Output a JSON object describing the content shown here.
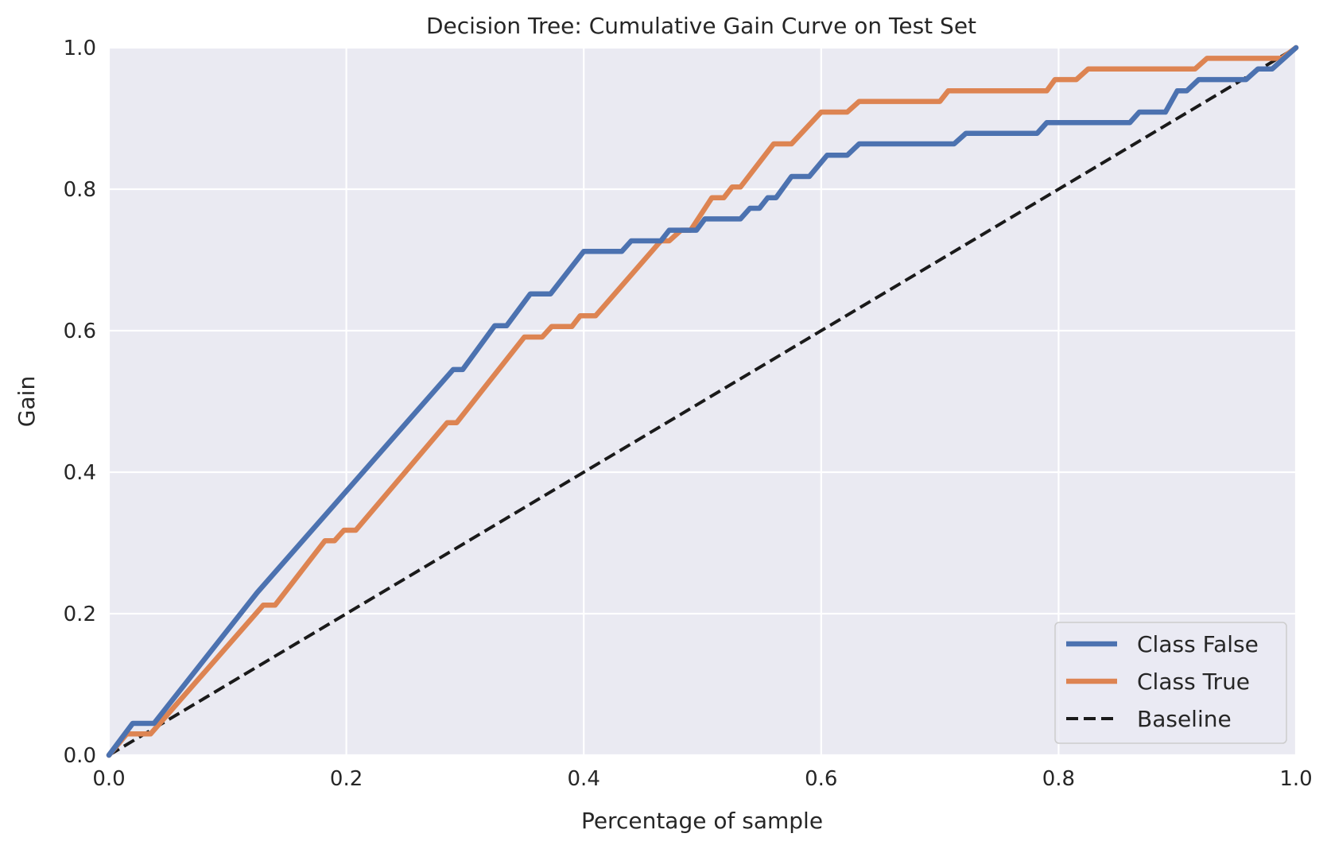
{
  "chart_data": {
    "type": "line",
    "title": "Decision Tree: Cumulative Gain Curve on Test Set",
    "xlabel": "Percentage of sample",
    "ylabel": "Gain",
    "xlim": [
      0.0,
      1.0
    ],
    "ylim": [
      0.0,
      1.0
    ],
    "xticks": [
      "0.0",
      "0.2",
      "0.4",
      "0.6",
      "0.8",
      "1.0"
    ],
    "yticks": [
      "0.0",
      "0.2",
      "0.4",
      "0.6",
      "0.8",
      "1.0"
    ],
    "grid": true,
    "background": "#eaeaf2",
    "legend_position": "lower-right",
    "series": [
      {
        "name": "Class False",
        "color": "#4c72b0",
        "style": "solid",
        "points": [
          [
            0.0,
            0.0
          ],
          [
            0.02,
            0.045
          ],
          [
            0.038,
            0.045
          ],
          [
            0.125,
            0.23
          ],
          [
            0.29,
            0.545
          ],
          [
            0.298,
            0.545
          ],
          [
            0.325,
            0.607
          ],
          [
            0.335,
            0.607
          ],
          [
            0.355,
            0.652
          ],
          [
            0.372,
            0.652
          ],
          [
            0.4,
            0.712
          ],
          [
            0.432,
            0.712
          ],
          [
            0.44,
            0.727
          ],
          [
            0.465,
            0.727
          ],
          [
            0.472,
            0.742
          ],
          [
            0.495,
            0.742
          ],
          [
            0.502,
            0.758
          ],
          [
            0.532,
            0.758
          ],
          [
            0.54,
            0.773
          ],
          [
            0.548,
            0.773
          ],
          [
            0.555,
            0.788
          ],
          [
            0.562,
            0.788
          ],
          [
            0.575,
            0.818
          ],
          [
            0.59,
            0.818
          ],
          [
            0.605,
            0.848
          ],
          [
            0.622,
            0.848
          ],
          [
            0.632,
            0.864
          ],
          [
            0.712,
            0.864
          ],
          [
            0.722,
            0.879
          ],
          [
            0.782,
            0.879
          ],
          [
            0.79,
            0.894
          ],
          [
            0.86,
            0.894
          ],
          [
            0.868,
            0.909
          ],
          [
            0.89,
            0.909
          ],
          [
            0.9,
            0.939
          ],
          [
            0.908,
            0.939
          ],
          [
            0.918,
            0.955
          ],
          [
            0.958,
            0.955
          ],
          [
            0.968,
            0.97
          ],
          [
            0.98,
            0.97
          ],
          [
            1.0,
            1.0
          ]
        ]
      },
      {
        "name": "Class True",
        "color": "#dd8452",
        "style": "solid",
        "points": [
          [
            0.0,
            0.0
          ],
          [
            0.015,
            0.03
          ],
          [
            0.035,
            0.03
          ],
          [
            0.13,
            0.212
          ],
          [
            0.14,
            0.212
          ],
          [
            0.182,
            0.303
          ],
          [
            0.19,
            0.303
          ],
          [
            0.198,
            0.318
          ],
          [
            0.208,
            0.318
          ],
          [
            0.285,
            0.47
          ],
          [
            0.293,
            0.47
          ],
          [
            0.35,
            0.591
          ],
          [
            0.365,
            0.591
          ],
          [
            0.373,
            0.606
          ],
          [
            0.39,
            0.606
          ],
          [
            0.397,
            0.621
          ],
          [
            0.41,
            0.621
          ],
          [
            0.465,
            0.727
          ],
          [
            0.472,
            0.727
          ],
          [
            0.482,
            0.742
          ],
          [
            0.49,
            0.742
          ],
          [
            0.508,
            0.788
          ],
          [
            0.518,
            0.788
          ],
          [
            0.525,
            0.803
          ],
          [
            0.532,
            0.803
          ],
          [
            0.56,
            0.864
          ],
          [
            0.575,
            0.864
          ],
          [
            0.6,
            0.909
          ],
          [
            0.622,
            0.909
          ],
          [
            0.632,
            0.924
          ],
          [
            0.7,
            0.924
          ],
          [
            0.707,
            0.939
          ],
          [
            0.79,
            0.939
          ],
          [
            0.797,
            0.955
          ],
          [
            0.815,
            0.955
          ],
          [
            0.825,
            0.97
          ],
          [
            0.915,
            0.97
          ],
          [
            0.925,
            0.985
          ],
          [
            0.988,
            0.985
          ],
          [
            1.0,
            1.0
          ]
        ]
      },
      {
        "name": "Baseline",
        "color": "#1a1a1a",
        "style": "dashed",
        "points": [
          [
            0.0,
            0.0
          ],
          [
            1.0,
            1.0
          ]
        ]
      }
    ]
  }
}
